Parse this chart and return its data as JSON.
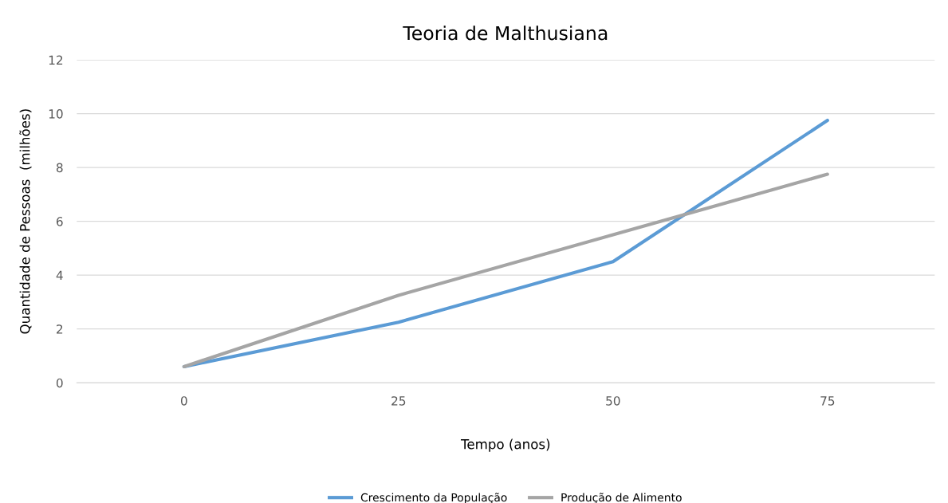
{
  "chart_data": {
    "type": "line",
    "title": "Teoria de Malthusiana",
    "xlabel": "Tempo (anos)",
    "ylabel": "Quantidade de Pessoas  (milhões)",
    "categories": [
      "0",
      "25",
      "50",
      "75"
    ],
    "series": [
      {
        "name": "Crescimento da População",
        "color": "#5b9bd5",
        "values": [
          0.6,
          2.25,
          4.5,
          9.75
        ]
      },
      {
        "name": "Produção de Alimento",
        "color": "#a5a5a5",
        "values": [
          0.6,
          3.25,
          5.5,
          7.75
        ]
      }
    ],
    "ylim": [
      0,
      12
    ],
    "yticks": [
      0,
      2,
      4,
      6,
      8,
      10,
      12
    ],
    "grid": "y",
    "legend": "bottom",
    "marker": "none",
    "line_style": "solid"
  }
}
